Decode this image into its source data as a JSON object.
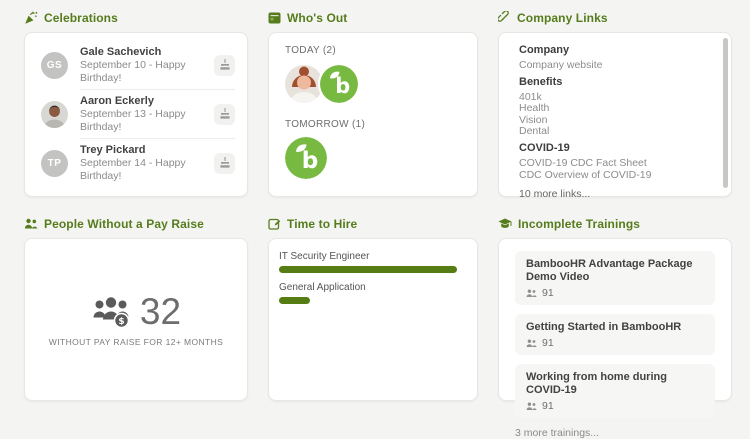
{
  "colors": {
    "accent_green": "#567c1c",
    "logo_green": "#78ba41",
    "bar_green": "#567d14",
    "page_bg": "#f4f4f2"
  },
  "celebrations": {
    "title": "Celebrations",
    "people": [
      {
        "avatar": "initials",
        "initials": "GS",
        "name": "Gale Sachevich",
        "detail": "September 10 - Happy Birthday!"
      },
      {
        "avatar": "photo-man",
        "name": "Aaron Eckerly",
        "detail": "September 13 - Happy Birthday!"
      },
      {
        "avatar": "initials",
        "initials": "TP",
        "name": "Trey Pickard",
        "detail": "September 14 - Happy Birthday!"
      }
    ]
  },
  "whos_out": {
    "title": "Who's Out",
    "today_label": "TODAY (2)",
    "tomorrow_label": "TOMORROW (1)",
    "today_avatars": [
      "photo-woman",
      "bamboohr-logo"
    ],
    "tomorrow_avatars": [
      "bamboohr-logo"
    ]
  },
  "company_links": {
    "title": "Company Links",
    "groups": [
      {
        "heading": "Company",
        "links": [
          "Company website"
        ]
      },
      {
        "heading": "Benefits",
        "links": [
          "401k",
          "Health",
          "Vision",
          "Dental"
        ]
      },
      {
        "heading": "COVID-19",
        "links": [
          "COVID-19 CDC Fact Sheet",
          "CDC Overview of COVID-19"
        ]
      }
    ],
    "more_label": "10 more links..."
  },
  "pay_raise": {
    "title": "People Without a Pay Raise",
    "count": "32",
    "caption": "WITHOUT PAY RAISE FOR 12+ MONTHS"
  },
  "time_to_hire": {
    "title": "Time to Hire"
  },
  "trainings": {
    "title": "Incomplete Trainings",
    "items": [
      {
        "name": "BambooHR Advantage Package Demo Video",
        "count": "91"
      },
      {
        "name": "Getting Started in BambooHR",
        "count": "91"
      },
      {
        "name": "Working from home during COVID-19",
        "count": "91"
      }
    ],
    "more_label": "3 more trainings..."
  },
  "chart_data": {
    "type": "bar",
    "orientation": "horizontal",
    "title": "Time to Hire",
    "categories": [
      "IT Security Engineer",
      "General Application"
    ],
    "values": [
      178,
      31
    ],
    "value_note": "no numeric axis or data labels shown; values are relative bar lengths in px",
    "bar_color": "#567d14",
    "grid": false,
    "legend": false
  }
}
